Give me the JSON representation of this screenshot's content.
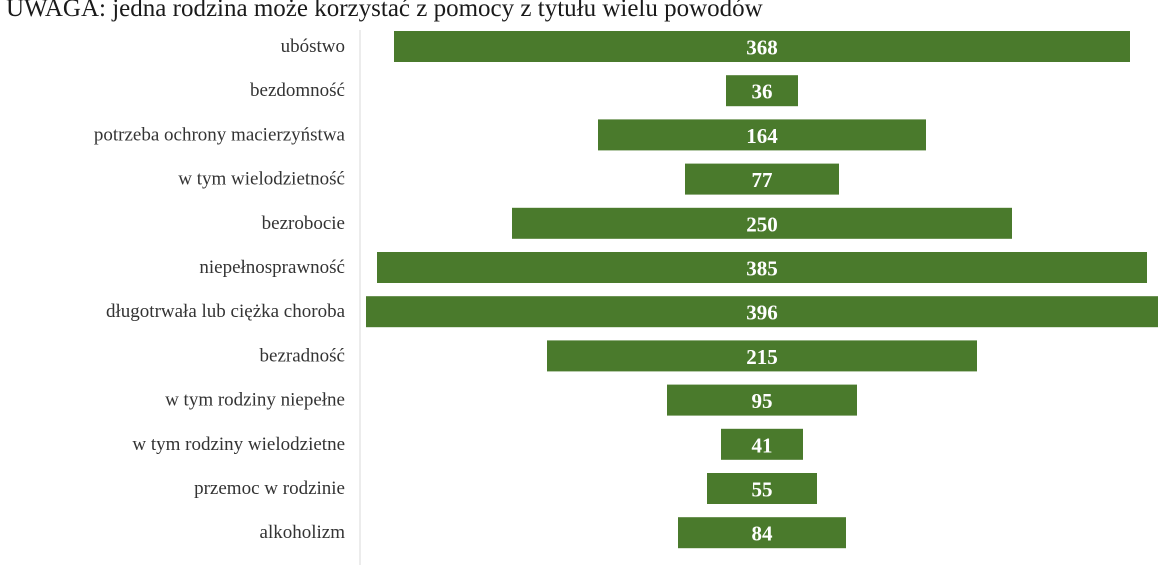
{
  "header": {
    "note": "UWAGA: jedna rodzina może korzystać z pomocy z tytułu wielu powodów"
  },
  "colors": {
    "bar": "#4a7a2c",
    "axis": "#d9d9d9",
    "value_text": "#ffffff",
    "category_text": "#333333"
  },
  "chart_data": {
    "type": "bar",
    "orientation": "horizontal",
    "layout": "centered",
    "title": "",
    "xlabel": "",
    "ylabel": "",
    "xlim": [
      0,
      400
    ],
    "grid": false,
    "categories": [
      "ubóstwo",
      "bezdomność",
      "potrzeba ochrony macierzyństwa",
      "w tym wielodzietność",
      "bezrobocie",
      "niepełnosprawność",
      "długotrwała lub ciężka choroba",
      "bezradność",
      "w tym rodziny niepełne",
      "w tym rodziny wielodzietne",
      "przemoc w rodzinie",
      "alkoholizm"
    ],
    "values": [
      368,
      36,
      164,
      77,
      250,
      385,
      396,
      215,
      95,
      41,
      55,
      84
    ]
  }
}
